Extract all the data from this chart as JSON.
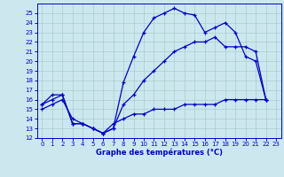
{
  "title": "Graphe des températures (°C)",
  "bg_color": "#cce8ee",
  "line_color": "#0000cc",
  "grid_color": "#aacccc",
  "xlim": [
    -0.5,
    23.5
  ],
  "ylim": [
    12,
    26
  ],
  "yticks": [
    12,
    13,
    14,
    15,
    16,
    17,
    18,
    19,
    20,
    21,
    22,
    23,
    24,
    25
  ],
  "xticks": [
    0,
    1,
    2,
    3,
    4,
    5,
    6,
    7,
    8,
    9,
    10,
    11,
    12,
    13,
    14,
    15,
    16,
    17,
    18,
    19,
    20,
    21,
    22,
    23
  ],
  "line1_x": [
    0,
    1,
    2,
    3,
    4,
    5,
    6,
    7,
    8,
    9,
    10,
    11,
    12,
    13,
    14,
    15,
    16,
    17,
    18,
    19,
    20,
    21,
    22
  ],
  "line1_y": [
    15.5,
    16.5,
    16.5,
    13.5,
    13.5,
    13.0,
    12.5,
    13.0,
    17.8,
    20.5,
    23.0,
    24.5,
    25.0,
    25.5,
    25.0,
    24.8,
    23.0,
    23.5,
    24.0,
    23.0,
    20.5,
    20.0,
    16.0
  ],
  "line2_x": [
    0,
    1,
    2,
    3,
    4,
    5,
    6,
    7,
    8,
    9,
    10,
    11,
    12,
    13,
    14,
    15,
    16,
    17,
    18,
    19,
    20,
    21,
    22
  ],
  "line2_y": [
    15.5,
    16.0,
    16.5,
    13.5,
    13.5,
    13.0,
    12.5,
    13.0,
    15.5,
    16.5,
    18.0,
    19.0,
    20.0,
    21.0,
    21.5,
    22.0,
    22.0,
    22.5,
    21.5,
    21.5,
    21.5,
    21.0,
    16.0
  ],
  "line3_x": [
    0,
    1,
    2,
    3,
    4,
    5,
    6,
    7,
    8,
    9,
    10,
    11,
    12,
    13,
    14,
    15,
    16,
    17,
    18,
    19,
    20,
    21,
    22
  ],
  "line3_y": [
    15.0,
    15.5,
    16.0,
    14.0,
    13.5,
    13.0,
    12.5,
    13.5,
    14.0,
    14.5,
    14.5,
    15.0,
    15.0,
    15.0,
    15.5,
    15.5,
    15.5,
    15.5,
    16.0,
    16.0,
    16.0,
    16.0,
    16.0
  ]
}
